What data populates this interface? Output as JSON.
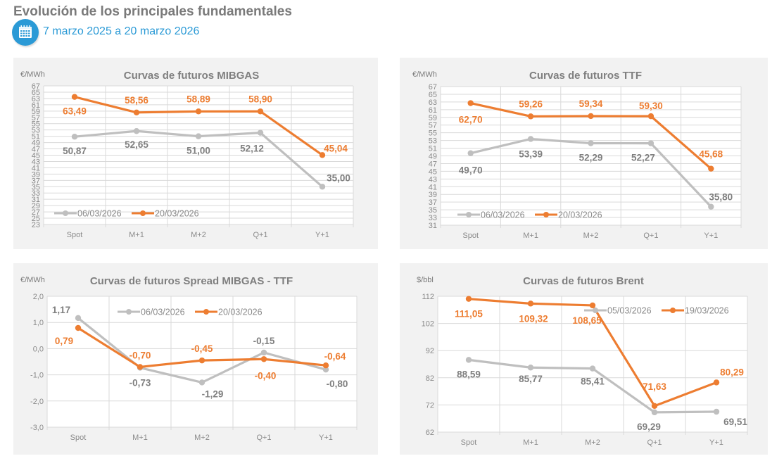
{
  "header": {
    "title": "Evolución de los principales fundamentales",
    "icon": "calendar-icon",
    "date_range": "7 marzo 2025 a 20 marzo 2026"
  },
  "colors": {
    "series_old": "#bfbfbf",
    "series_new": "#ed7d31",
    "label_old": "#7f7f7f",
    "label_new": "#ed7d31"
  },
  "chart_data": [
    {
      "id": "mibgas",
      "type": "line",
      "title": "Curvas de futuros MIBGAS",
      "ylabel": "€/MWh",
      "categories": [
        "Spot",
        "M+1",
        "M+2",
        "Q+1",
        "Y+1"
      ],
      "ylim": [
        23,
        67
      ],
      "yticks": [
        "67",
        "65",
        "63",
        "61",
        "59",
        "57",
        "55",
        "53",
        "51",
        "49",
        "47",
        "45",
        "43",
        "41",
        "39",
        "37",
        "35",
        "33",
        "31",
        "29",
        "27",
        "25",
        "23"
      ],
      "legend_position": "bottom-left",
      "grid": true,
      "series": [
        {
          "name": "06/03/2026",
          "values": [
            50.87,
            52.65,
            51.0,
            52.12,
            35.0
          ],
          "labels": [
            "50,87",
            "52,65",
            "51,00",
            "52,12",
            "35,00"
          ]
        },
        {
          "name": "20/03/2026",
          "values": [
            63.49,
            58.56,
            58.89,
            58.9,
            45.04
          ],
          "labels": [
            "63,49",
            "58,56",
            "58,89",
            "58,90",
            "45,04"
          ]
        }
      ]
    },
    {
      "id": "ttf",
      "type": "line",
      "title": "Curvas de futuros TTF",
      "ylabel": "€/MWh",
      "categories": [
        "Spot",
        "M+1",
        "M+2",
        "Q+1",
        "Y+1"
      ],
      "ylim": [
        31,
        67
      ],
      "yticks": [
        "67",
        "65",
        "63",
        "61",
        "59",
        "57",
        "55",
        "53",
        "51",
        "49",
        "47",
        "45",
        "43",
        "41",
        "39",
        "37",
        "35",
        "33",
        "31"
      ],
      "legend_position": "bottom-left",
      "grid": true,
      "series": [
        {
          "name": "06/03/2026",
          "values": [
            49.7,
            53.39,
            52.29,
            52.27,
            35.8
          ],
          "labels": [
            "49,70",
            "53,39",
            "52,29",
            "52,27",
            "35,80"
          ]
        },
        {
          "name": "20/03/2026",
          "values": [
            62.7,
            59.26,
            59.34,
            59.3,
            45.68
          ],
          "labels": [
            "62,70",
            "59,26",
            "59,34",
            "59,30",
            "45,68"
          ]
        }
      ]
    },
    {
      "id": "spread",
      "type": "line",
      "title": "Curvas de futuros Spread MIBGAS - TTF",
      "ylabel": "€/MWh",
      "categories": [
        "Spot",
        "M+1",
        "M+2",
        "Q+1",
        "Y+1"
      ],
      "ylim": [
        -3,
        2
      ],
      "yticks": [
        "2,0",
        "1,0",
        "0,0",
        "-1,0",
        "-2,0",
        "-3,0"
      ],
      "legend_position": "top",
      "grid": true,
      "series": [
        {
          "name": "06/03/2026",
          "values": [
            1.17,
            -0.73,
            -1.29,
            -0.15,
            -0.8
          ],
          "labels": [
            "1,17",
            "-0,73",
            "-1,29",
            "-0,15",
            "-0,80"
          ]
        },
        {
          "name": "20/03/2026",
          "values": [
            0.79,
            -0.7,
            -0.45,
            -0.4,
            -0.64
          ],
          "labels": [
            "0,79",
            "-0,70",
            "-0,45",
            "-0,40",
            "-0,64"
          ]
        }
      ]
    },
    {
      "id": "brent",
      "type": "line",
      "title": "Curvas de futuros Brent",
      "ylabel": "$/bbl",
      "categories": [
        "Spot",
        "M+1",
        "M+2",
        "Q+1",
        "Y+1"
      ],
      "ylim": [
        62,
        112
      ],
      "yticks": [
        "112",
        "102",
        "92",
        "82",
        "72",
        "62"
      ],
      "legend_position": "top-right",
      "grid": true,
      "series": [
        {
          "name": "05/03/2026",
          "values": [
            88.59,
            85.77,
            85.41,
            69.29,
            69.51
          ],
          "labels": [
            "88,59",
            "85,77",
            "85,41",
            "69,29",
            "69,51"
          ]
        },
        {
          "name": "19/03/2026",
          "values": [
            111.05,
            109.32,
            108.65,
            71.63,
            80.29
          ],
          "labels": [
            "111,05",
            "109,32",
            "108,65",
            "71,63",
            "80,29"
          ]
        }
      ]
    }
  ]
}
